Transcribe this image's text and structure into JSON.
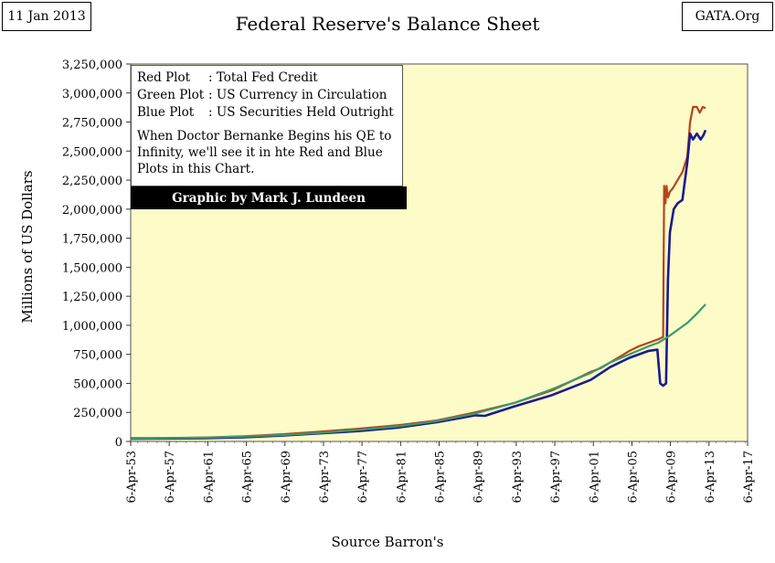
{
  "header": {
    "date": "11 Jan 2013",
    "site": "GATA.Org",
    "title": "Federal Reserve's Balance Sheet"
  },
  "legend": {
    "rows": [
      {
        "key": "Red Plot",
        "text": ": Total Fed Credit"
      },
      {
        "key": "Green Plot",
        "text": ": US Currency in Circulation"
      },
      {
        "key": "Blue Plot",
        "text": ": US Securities Held Outright"
      }
    ],
    "note": "When Doctor Bernanke Begins his QE to Infinity, we'll see it in hte Red and Blue Plots in this Chart.",
    "credit": "Graphic by Mark J. Lundeen"
  },
  "chart_data": {
    "type": "line",
    "title": "Federal Reserve's Balance Sheet",
    "xlabel": "Source Barron's",
    "ylabel": "Millions of US Dollars",
    "xlim": [
      1953.26,
      2017.26
    ],
    "ylim": [
      0,
      3250000
    ],
    "x_ticks": [
      1953.26,
      1957.26,
      1961.26,
      1965.26,
      1969.26,
      1973.26,
      1977.26,
      1981.26,
      1985.26,
      1989.26,
      1993.26,
      1997.26,
      2001.26,
      2005.26,
      2009.26,
      2013.26,
      2017.26
    ],
    "x_tick_labels": [
      "6-Apr-53",
      "6-Apr-57",
      "6-Apr-61",
      "6-Apr-65",
      "6-Apr-69",
      "6-Apr-73",
      "6-Apr-77",
      "6-Apr-81",
      "6-Apr-85",
      "6-Apr-89",
      "6-Apr-93",
      "6-Apr-97",
      "6-Apr-01",
      "6-Apr-05",
      "6-Apr-09",
      "6-Apr-13",
      "6-Apr-17"
    ],
    "y_ticks": [
      0,
      250000,
      500000,
      750000,
      1000000,
      1250000,
      1500000,
      1750000,
      2000000,
      2250000,
      2500000,
      2750000,
      3000000,
      3250000
    ],
    "y_tick_labels": [
      "0",
      "250,000",
      "500,000",
      "750,000",
      "1,000,000",
      "1,250,000",
      "1,500,000",
      "1,750,000",
      "2,000,000",
      "2,250,000",
      "2,500,000",
      "2,750,000",
      "3,000,000",
      "3,250,000"
    ],
    "grid": false,
    "series": [
      {
        "name": "Total Fed Credit",
        "color": "#b5441c",
        "x": [
          1953.3,
          1957,
          1961,
          1965,
          1969,
          1973,
          1977,
          1981,
          1985,
          1989,
          1990,
          1993,
          1997,
          2001,
          2002,
          2005,
          2006,
          2007,
          2008.0,
          2008.5,
          2008.6,
          2008.75,
          2008.85,
          2009.0,
          2009.2,
          2009.5,
          2010.0,
          2010.5,
          2011.0,
          2011.3,
          2011.6,
          2012.0,
          2012.3,
          2012.6,
          2012.9
        ],
        "y": [
          28000,
          30000,
          34000,
          45000,
          62000,
          85000,
          110000,
          140000,
          180000,
          250000,
          270000,
          330000,
          440000,
          600000,
          630000,
          780000,
          820000,
          850000,
          880000,
          900000,
          2200000,
          2050000,
          2200000,
          2100000,
          2150000,
          2180000,
          2250000,
          2320000,
          2450000,
          2750000,
          2880000,
          2880000,
          2830000,
          2880000,
          2870000
        ]
      },
      {
        "name": "US Currency in Circulation",
        "color": "#3a9a6a",
        "x": [
          1953.3,
          1957,
          1961,
          1965,
          1969,
          1973,
          1977,
          1981,
          1985,
          1989,
          1993,
          1997,
          2001,
          2003,
          2005,
          2007,
          2008,
          2009,
          2010,
          2011,
          2012,
          2012.9
        ],
        "y": [
          25000,
          28000,
          33000,
          42000,
          55000,
          75000,
          100000,
          130000,
          175000,
          240000,
          330000,
          450000,
          590000,
          680000,
          750000,
          820000,
          850000,
          900000,
          960000,
          1020000,
          1100000,
          1180000
        ]
      },
      {
        "name": "US Securities Held Outright",
        "color": "#1a1a90",
        "x": [
          1953.3,
          1957,
          1961,
          1965,
          1969,
          1973,
          1977,
          1981,
          1985,
          1989,
          1990,
          1993,
          1997,
          2001,
          2003,
          2005,
          2007,
          2007.9,
          2008.2,
          2008.5,
          2008.8,
          2009.0,
          2009.2,
          2009.6,
          2010.0,
          2010.5,
          2011.0,
          2011.3,
          2011.6,
          2012.0,
          2012.4,
          2012.7,
          2012.9
        ],
        "y": [
          23000,
          25000,
          28000,
          36000,
          50000,
          70000,
          90000,
          120000,
          165000,
          225000,
          220000,
          300000,
          400000,
          530000,
          640000,
          720000,
          780000,
          790000,
          500000,
          480000,
          500000,
          1400000,
          1800000,
          2000000,
          2050000,
          2080000,
          2400000,
          2650000,
          2600000,
          2650000,
          2600000,
          2640000,
          2680000
        ]
      }
    ]
  }
}
